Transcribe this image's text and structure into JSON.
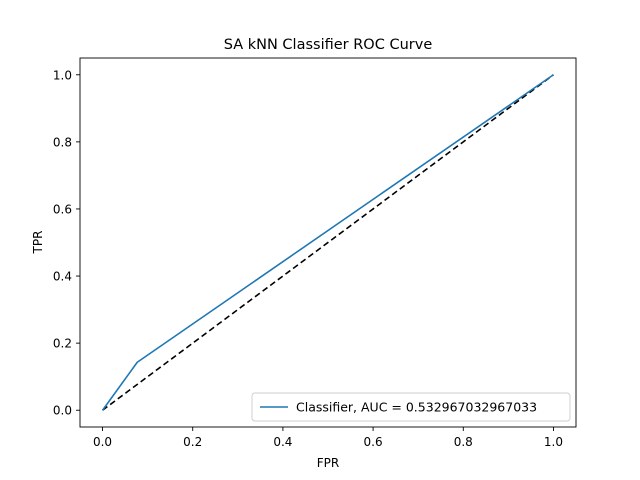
{
  "chart_data": {
    "type": "line",
    "title": "SA kNN Classifier ROC Curve",
    "xlabel": "FPR",
    "ylabel": "TPR",
    "xlim": [
      -0.05,
      1.05
    ],
    "ylim": [
      -0.05,
      1.05
    ],
    "x_ticks": [
      0.0,
      0.2,
      0.4,
      0.6,
      0.8,
      1.0
    ],
    "y_ticks": [
      0.0,
      0.2,
      0.4,
      0.6,
      0.8,
      1.0
    ],
    "x_tick_labels": [
      "0.0",
      "0.2",
      "0.4",
      "0.6",
      "0.8",
      "1.0"
    ],
    "y_tick_labels": [
      "0.0",
      "0.2",
      "0.4",
      "0.6",
      "0.8",
      "1.0"
    ],
    "grid": false,
    "legend_placement": "lower-right",
    "series": [
      {
        "name": "Classifier, AUC = 0.532967032967033",
        "x": [
          0.0,
          0.077,
          1.0
        ],
        "y": [
          0.0,
          0.143,
          1.0
        ],
        "color": "#1f77b4",
        "style": "solid"
      }
    ],
    "reference_line": {
      "x": [
        0.0,
        1.0
      ],
      "y": [
        0.0,
        1.0
      ],
      "color": "#000000",
      "style": "dashed"
    }
  }
}
